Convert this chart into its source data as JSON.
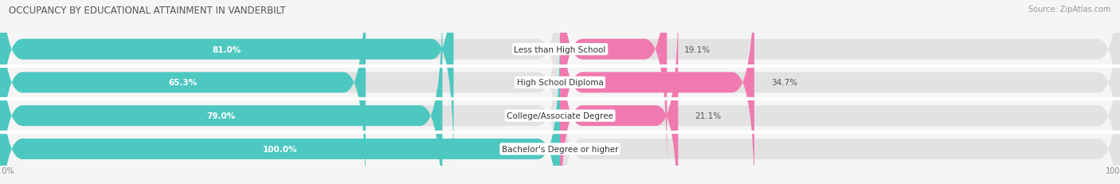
{
  "title": "OCCUPANCY BY EDUCATIONAL ATTAINMENT IN VANDERBILT",
  "source": "Source: ZipAtlas.com",
  "categories": [
    "Less than High School",
    "High School Diploma",
    "College/Associate Degree",
    "Bachelor's Degree or higher"
  ],
  "owner_values": [
    81.0,
    65.3,
    79.0,
    100.0
  ],
  "renter_values": [
    19.1,
    34.7,
    21.1,
    0.0
  ],
  "owner_color": "#4DC8C0",
  "renter_color": "#F07AAF",
  "bg_bar_color": "#E2E2E2",
  "background_color": "#F5F5F5",
  "row_sep_color": "#FFFFFF",
  "title_fontsize": 8.5,
  "value_fontsize": 7.5,
  "tick_fontsize": 7.0,
  "legend_fontsize": 7.5,
  "source_fontsize": 7.0,
  "category_fontsize": 7.5,
  "bar_height": 0.62,
  "label_color": "#555555",
  "value_label_color": "#555555",
  "owner_label_color": "#FFFFFF",
  "renter_label_outside_color": "#555555"
}
